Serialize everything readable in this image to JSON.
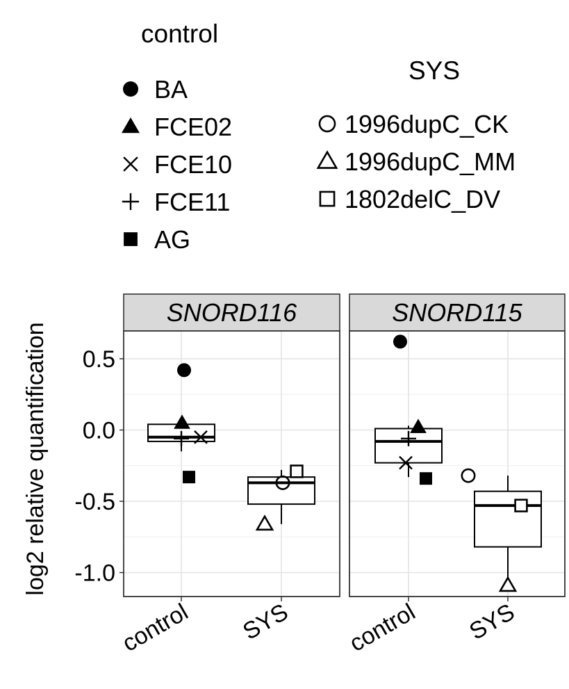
{
  "chart_data": {
    "type": "boxplot",
    "ylabel": "log2 relative quantification",
    "xlabel": "",
    "ylim": [
      -1.15,
      0.72
    ],
    "yticks": [
      0.5,
      0.0,
      -0.5,
      -1.0
    ],
    "ytick_labels": [
      "0.5",
      "0.0",
      "-0.5",
      "-1.0"
    ],
    "categories": [
      "control",
      "SYS"
    ],
    "grid": true,
    "legend": {
      "placement": "top",
      "groups": [
        {
          "title": "control",
          "entries": [
            {
              "label": "BA",
              "shape": "filled-circle"
            },
            {
              "label": "FCE02",
              "shape": "filled-triangle"
            },
            {
              "label": "FCE10",
              "shape": "cross-x"
            },
            {
              "label": "FCE11",
              "shape": "plus"
            },
            {
              "label": "AG",
              "shape": "filled-square"
            }
          ]
        },
        {
          "title": "SYS",
          "entries": [
            {
              "label": "1996dupC_CK",
              "shape": "open-circle"
            },
            {
              "label": "1996dupC_MM",
              "shape": "open-triangle"
            },
            {
              "label": "1802delC_DV",
              "shape": "open-square"
            }
          ]
        }
      ]
    },
    "panels": [
      {
        "title": "SNORD116",
        "boxes": [
          {
            "category": "control",
            "min": -0.15,
            "q1": -0.08,
            "median": -0.05,
            "q3": 0.04,
            "max": 0.04
          },
          {
            "category": "SYS",
            "min": -0.66,
            "q1": -0.52,
            "median": -0.37,
            "q3": -0.33,
            "max": -0.28
          }
        ],
        "points": [
          {
            "label": "BA",
            "category": "control",
            "y": 0.42
          },
          {
            "label": "FCE02",
            "category": "control",
            "y": 0.05
          },
          {
            "label": "FCE10",
            "category": "control",
            "y": -0.05
          },
          {
            "label": "FCE11",
            "category": "control",
            "y": -0.06
          },
          {
            "label": "AG",
            "category": "control",
            "y": -0.33
          },
          {
            "label": "1996dupC_CK",
            "category": "SYS",
            "y": -0.37
          },
          {
            "label": "1996dupC_MM",
            "category": "SYS",
            "y": -0.66
          },
          {
            "label": "1802delC_DV",
            "category": "SYS",
            "y": -0.29
          }
        ]
      },
      {
        "title": "SNORD115",
        "boxes": [
          {
            "category": "control",
            "min": -0.33,
            "q1": -0.23,
            "median": -0.08,
            "q3": 0.01,
            "max": 0.03
          },
          {
            "category": "SYS",
            "min": -1.08,
            "q1": -0.82,
            "median": -0.53,
            "q3": -0.43,
            "max": -0.32
          }
        ],
        "points": [
          {
            "label": "BA",
            "category": "control",
            "y": 0.62
          },
          {
            "label": "FCE02",
            "category": "control",
            "y": 0.02
          },
          {
            "label": "FCE10",
            "category": "control",
            "y": -0.23
          },
          {
            "label": "FCE11",
            "category": "control",
            "y": -0.06
          },
          {
            "label": "AG",
            "category": "control",
            "y": -0.34
          },
          {
            "label": "1996dupC_CK",
            "category": "SYS",
            "y": -0.32
          },
          {
            "label": "1996dupC_MM",
            "category": "SYS",
            "y": -1.09
          },
          {
            "label": "1802delC_DV",
            "category": "SYS",
            "y": -0.53
          }
        ]
      }
    ]
  }
}
